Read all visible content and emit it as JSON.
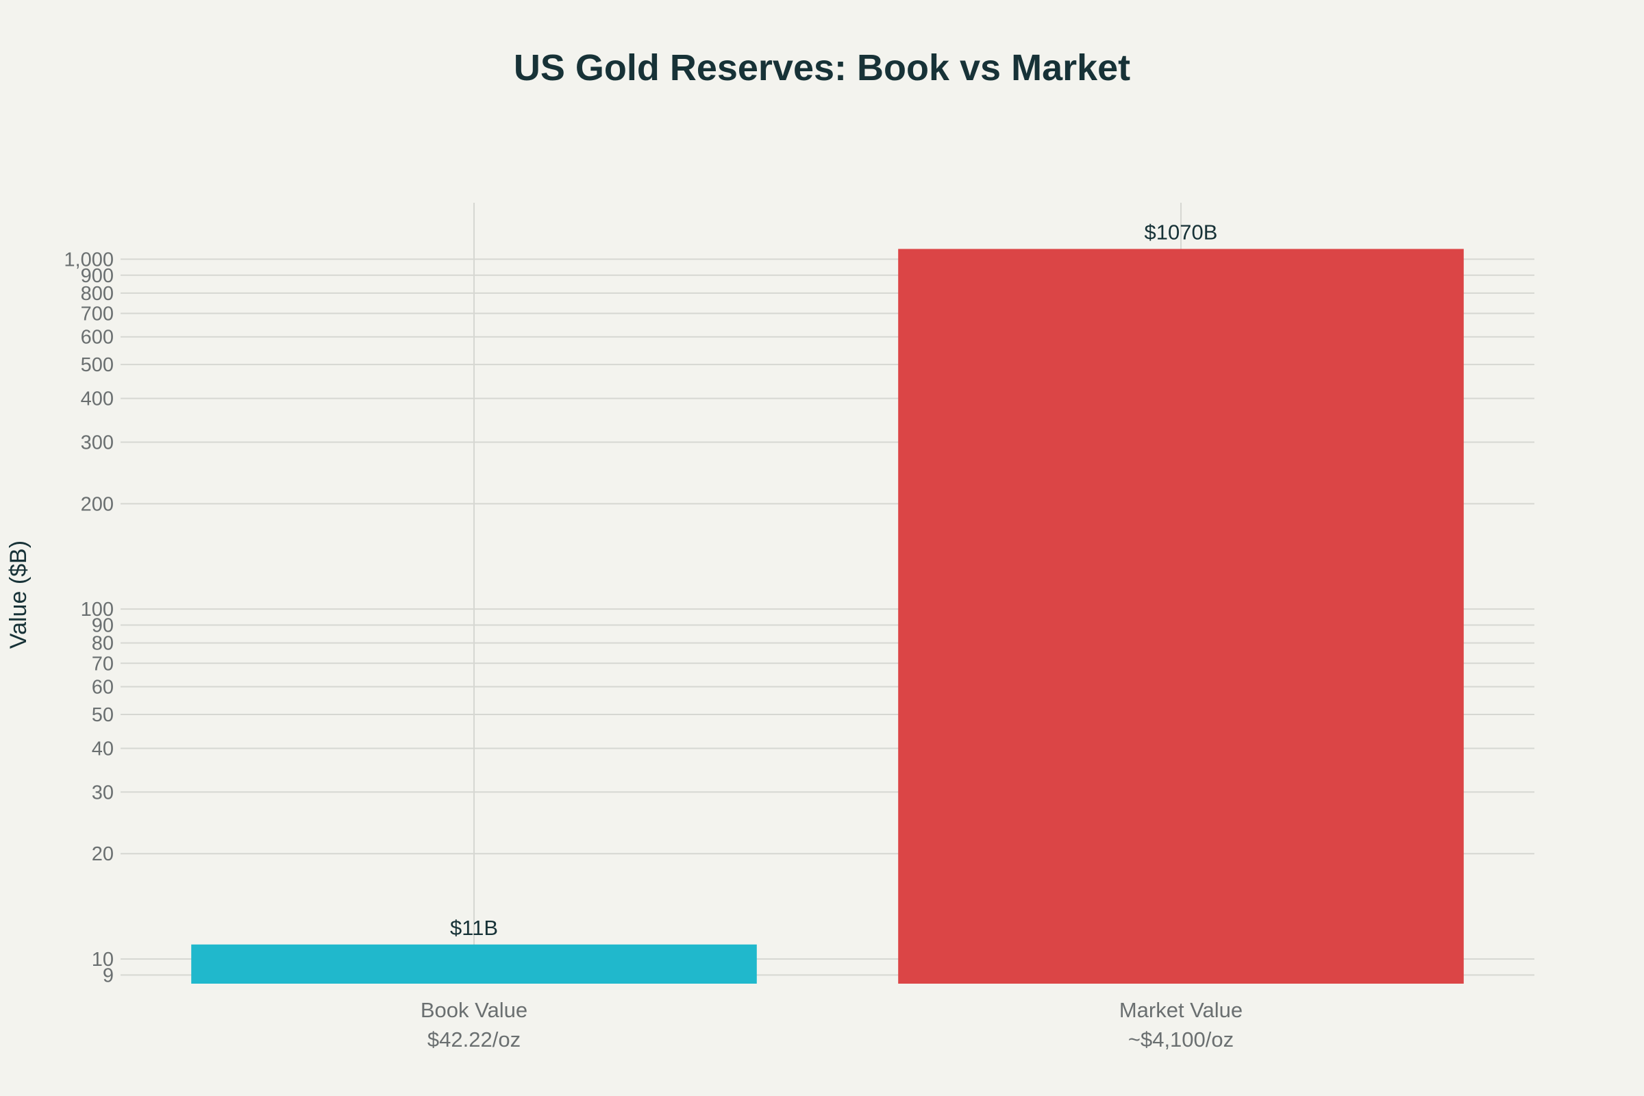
{
  "chart_data": {
    "type": "bar",
    "title": "US Gold Reserves: Book vs Market",
    "ylabel": "Value ($B)",
    "xlabel": "",
    "yscale": "log",
    "ylim": [
      8.5,
      1450
    ],
    "grid": true,
    "categories": [
      {
        "label": "Book Value",
        "sublabel": "$42.22/oz"
      },
      {
        "label": "Market Value",
        "sublabel": "~$4,100/oz"
      }
    ],
    "values": [
      11,
      1070
    ],
    "data_labels": [
      "$11B",
      "$1070B"
    ],
    "colors": [
      "#20b8cc",
      "#db4546"
    ],
    "yticks": [
      {
        "value": 9,
        "label": "9"
      },
      {
        "value": 10,
        "label": "10"
      },
      {
        "value": 20,
        "label": "20"
      },
      {
        "value": 30,
        "label": "30"
      },
      {
        "value": 40,
        "label": "40"
      },
      {
        "value": 50,
        "label": "50"
      },
      {
        "value": 60,
        "label": "60"
      },
      {
        "value": 70,
        "label": "70"
      },
      {
        "value": 80,
        "label": "80"
      },
      {
        "value": 90,
        "label": "90"
      },
      {
        "value": 100,
        "label": "100"
      },
      {
        "value": 200,
        "label": "200"
      },
      {
        "value": 300,
        "label": "300"
      },
      {
        "value": 400,
        "label": "400"
      },
      {
        "value": 500,
        "label": "500"
      },
      {
        "value": 600,
        "label": "600"
      },
      {
        "value": 700,
        "label": "700"
      },
      {
        "value": 800,
        "label": "800"
      },
      {
        "value": 900,
        "label": "900"
      },
      {
        "value": 1000,
        "label": "1,000"
      }
    ]
  }
}
